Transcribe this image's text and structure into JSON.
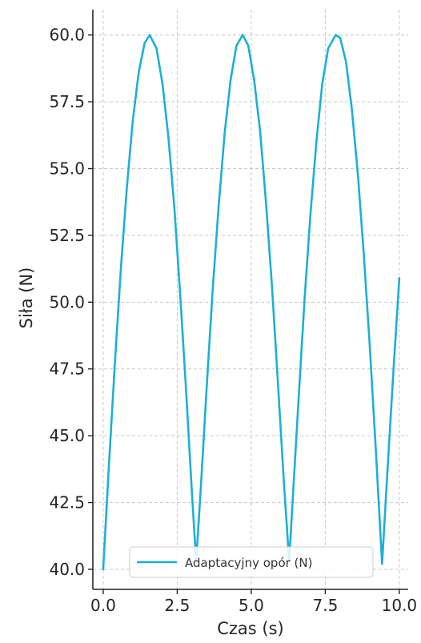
{
  "chart_data": {
    "type": "line",
    "xlabel": "Czas (s)",
    "ylabel": "Siła (N)",
    "xlim": [
      -0.35,
      10.3
    ],
    "ylim": [
      39.25,
      60.95
    ],
    "x_ticks": [
      0.0,
      2.5,
      5.0,
      7.5,
      10.0
    ],
    "x_tick_labels": [
      "0.0",
      "2.5",
      "5.0",
      "7.5",
      "10.0"
    ],
    "y_ticks": [
      40.0,
      42.5,
      45.0,
      47.5,
      50.0,
      52.5,
      55.0,
      57.5,
      60.0
    ],
    "y_tick_labels": [
      "40.0",
      "42.5",
      "45.0",
      "47.5",
      "50.0",
      "52.5",
      "55.0",
      "57.5",
      "60.0"
    ],
    "grid": true,
    "legend_position": "bottom-center",
    "series": [
      {
        "name": "Adaptacyjny opór (N)",
        "color": "#1cb0d6",
        "x": [
          0.0,
          0.2,
          0.4,
          0.6,
          0.8,
          1.0,
          1.2,
          1.4,
          1.57,
          1.8,
          2.0,
          2.2,
          2.4,
          2.6,
          2.8,
          3.0,
          3.14,
          3.3,
          3.5,
          3.7,
          3.9,
          4.1,
          4.3,
          4.5,
          4.71,
          4.9,
          5.1,
          5.3,
          5.5,
          5.7,
          5.9,
          6.1,
          6.28,
          6.4,
          6.6,
          6.8,
          7.0,
          7.2,
          7.4,
          7.6,
          7.85,
          8.0,
          8.2,
          8.4,
          8.6,
          8.8,
          9.0,
          9.2,
          9.42,
          9.6,
          9.8,
          10.0
        ],
        "values": [
          40.0,
          44.0,
          47.8,
          51.3,
          54.3,
          56.8,
          58.6,
          59.7,
          60.0,
          59.5,
          58.2,
          56.2,
          53.6,
          50.3,
          46.7,
          42.8,
          40.3,
          43.1,
          46.9,
          50.5,
          53.6,
          56.3,
          58.3,
          59.6,
          60.0,
          59.6,
          58.3,
          56.4,
          53.7,
          50.6,
          47.0,
          43.3,
          40.3,
          42.6,
          46.4,
          50.1,
          53.3,
          56.0,
          58.2,
          59.5,
          60.0,
          59.9,
          59.0,
          57.2,
          54.8,
          51.8,
          48.4,
          44.6,
          40.2,
          43.7,
          47.4,
          50.9
        ]
      }
    ]
  }
}
